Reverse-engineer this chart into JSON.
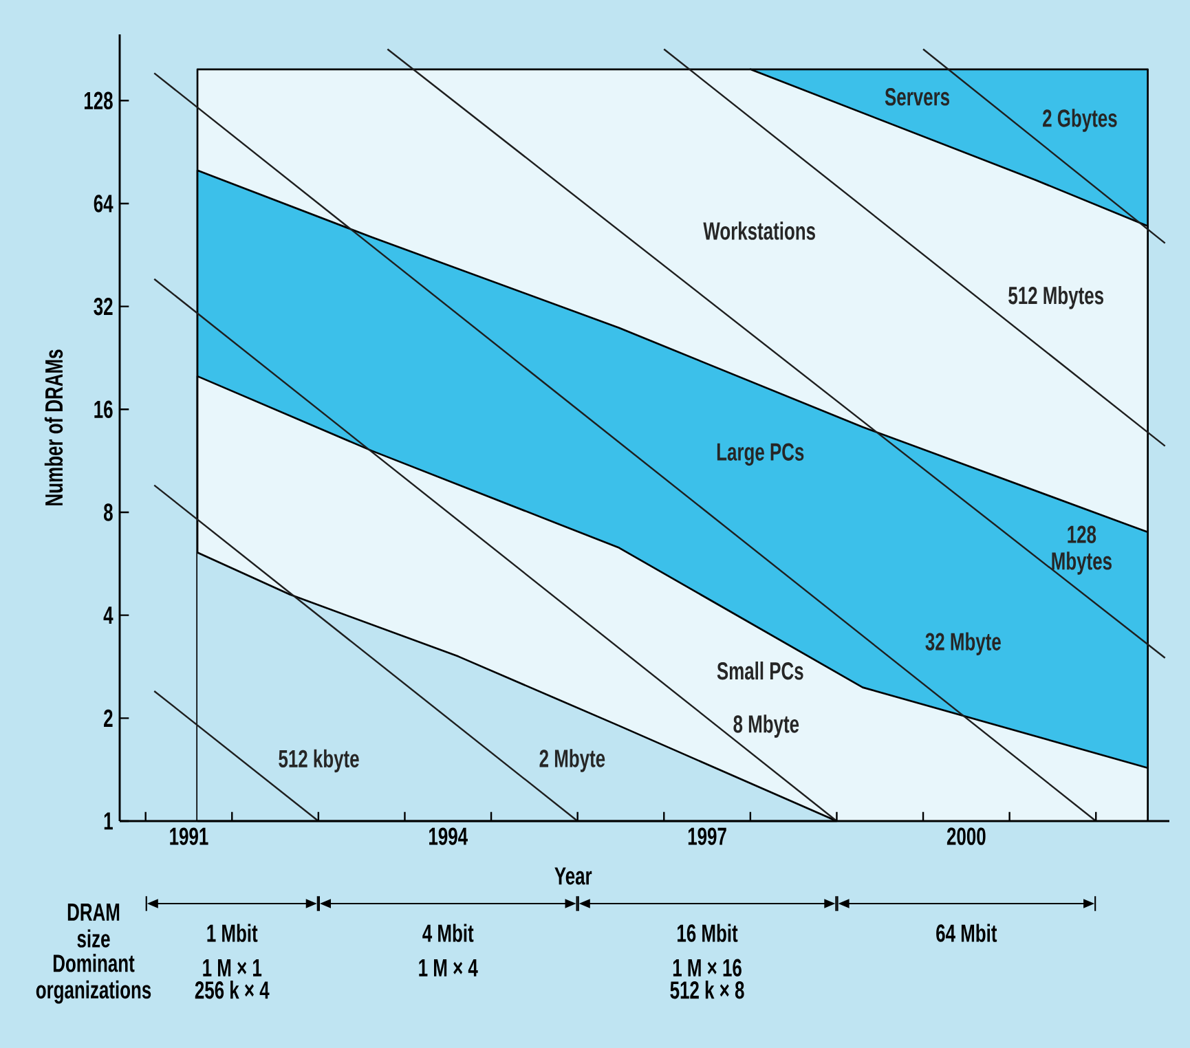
{
  "chart_data": {
    "type": "line",
    "xlabel": "Year",
    "ylabel": "Number of DRAMs",
    "log": "y",
    "xlim": [
      1990.7,
      2002.85
    ],
    "ylim": [
      1,
      200
    ],
    "yticks": [
      1,
      2,
      4,
      8,
      16,
      32,
      64,
      128
    ],
    "xticks": [
      {
        "value": 1991,
        "label": null
      },
      {
        "value": 1992,
        "label": null
      },
      {
        "value": 1993,
        "label": null
      },
      {
        "value": 1994,
        "label": null
      },
      {
        "value": 1995,
        "label": null
      },
      {
        "value": 1996,
        "label": null
      },
      {
        "value": 1997,
        "label": null
      },
      {
        "value": 1998,
        "label": null
      },
      {
        "value": 1999,
        "label": null
      },
      {
        "value": 2000,
        "label": null
      },
      {
        "value": 2001,
        "label": null
      },
      {
        "value": 2002,
        "label": null
      },
      {
        "value": 1991.5,
        "label": "1991"
      },
      {
        "value": 1994.5,
        "label": "1994"
      },
      {
        "value": 1997.5,
        "label": "1997"
      },
      {
        "value": 2000.5,
        "label": "2000"
      }
    ],
    "series": [
      {
        "type": "area",
        "name": "Servers",
        "color": "#3cc0ea",
        "x": [
          1998.0,
          2002.6
        ],
        "values": [
          158,
          158
        ]
      },
      {
        "type": "area",
        "name": "Workstations",
        "color": "#e8f6fb",
        "x": [
          1991.6,
          1998.0,
          2001.3,
          2002.6
        ],
        "values": [
          158,
          158,
          75,
          55
        ]
      },
      {
        "type": "area",
        "name": "Large PCs",
        "color": "#3cc0ea",
        "x": [
          1991.6,
          1993.62,
          1996.48,
          1999.3,
          2002.6
        ],
        "values": [
          80,
          51,
          27.7,
          14.2,
          7.0
        ]
      },
      {
        "type": "area",
        "name": "Small PCs",
        "color": "#e8f6fb",
        "x": [
          1991.6,
          1993.62,
          1996.48,
          1999.3,
          2002.6
        ],
        "values": [
          20,
          12.1,
          6.3,
          2.46,
          1.43
        ]
      },
      {
        "type": "area",
        "color": "#bfe4f2",
        "x": [
          1991.6,
          1992.67,
          1994.62,
          1996.48,
          1999.0
        ],
        "values": [
          6.1,
          4.6,
          3.03,
          1.9,
          1
        ]
      },
      {
        "name": "512 kbyte",
        "color": "#1e1e1e",
        "x": [
          1991.1,
          1993
        ],
        "values": [
          2.4,
          1
        ]
      },
      {
        "name": "2 Mbyte",
        "color": "#1e1e1e",
        "x": [
          1991.1,
          1996
        ],
        "values": [
          9.6,
          1
        ]
      },
      {
        "name": "8 Mbyte",
        "color": "#1e1e1e",
        "x": [
          1991.1,
          1999
        ],
        "values": [
          38.5,
          1
        ]
      },
      {
        "name": "32 Mbyte",
        "color": "#1e1e1e",
        "x": [
          1991.1,
          2002
        ],
        "values": [
          154,
          1
        ]
      },
      {
        "name": "128 Mbytes",
        "color": "#1e1e1e",
        "x": [
          1993.8,
          2002.8
        ],
        "values": [
          181,
          3.0
        ]
      },
      {
        "name": "512 Mbytes",
        "color": "#1e1e1e",
        "x": [
          1997,
          2002.8
        ],
        "values": [
          181,
          12.5
        ]
      },
      {
        "name": "2 Gbytes",
        "color": "#1e1e1e",
        "x": [
          2000,
          2002.8
        ],
        "values": [
          181,
          49
        ]
      }
    ],
    "annotations": [
      "DRAM size",
      "Dominant organizations",
      "1 Mbit",
      "4 Mbit",
      "16 Mbit",
      "64 Mbit",
      "1 M × 1",
      "256 k × 4",
      "1 M × 4",
      "1 M × 16",
      "512 k × 8"
    ]
  }
}
